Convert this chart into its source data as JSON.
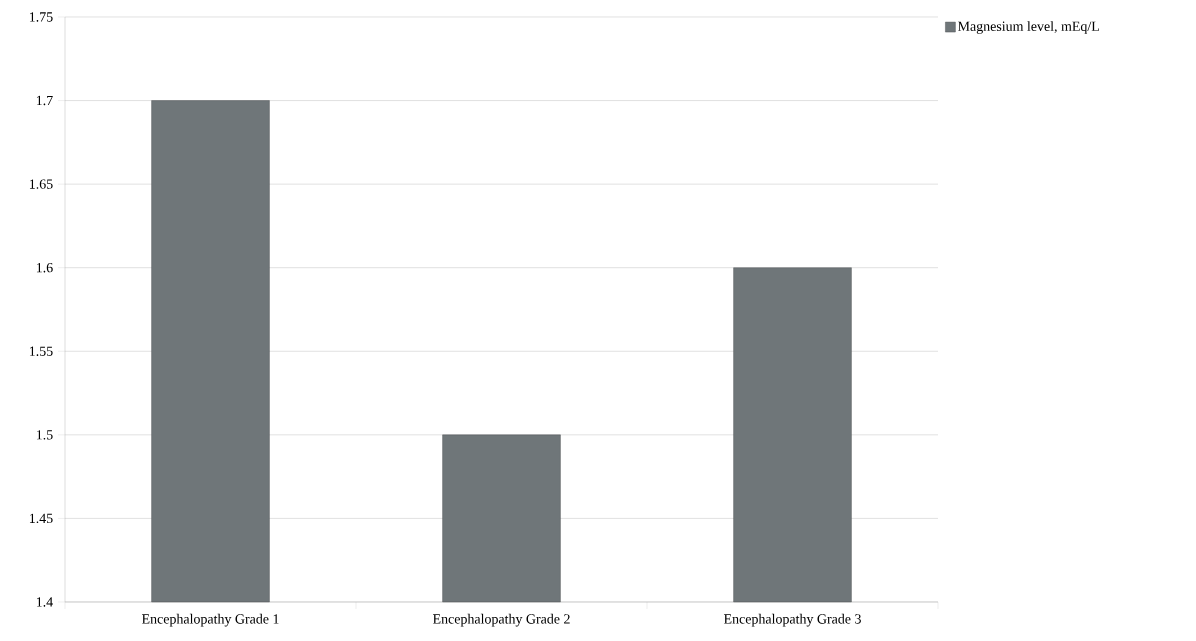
{
  "chart_data": {
    "type": "bar",
    "categories": [
      "Encephalopathy Grade 1",
      "Encephalopathy Grade 2",
      "Encephalopathy Grade 3"
    ],
    "series": [
      {
        "name": "Magnesium level, mEq/L",
        "color": "#6f7679",
        "values": [
          1.7,
          1.5,
          1.6
        ]
      }
    ],
    "ylim": [
      1.4,
      1.75
    ],
    "yticks": [
      1.4,
      1.45,
      1.5,
      1.55,
      1.6,
      1.65,
      1.7,
      1.75
    ],
    "grid": "y",
    "legend": "top right"
  }
}
